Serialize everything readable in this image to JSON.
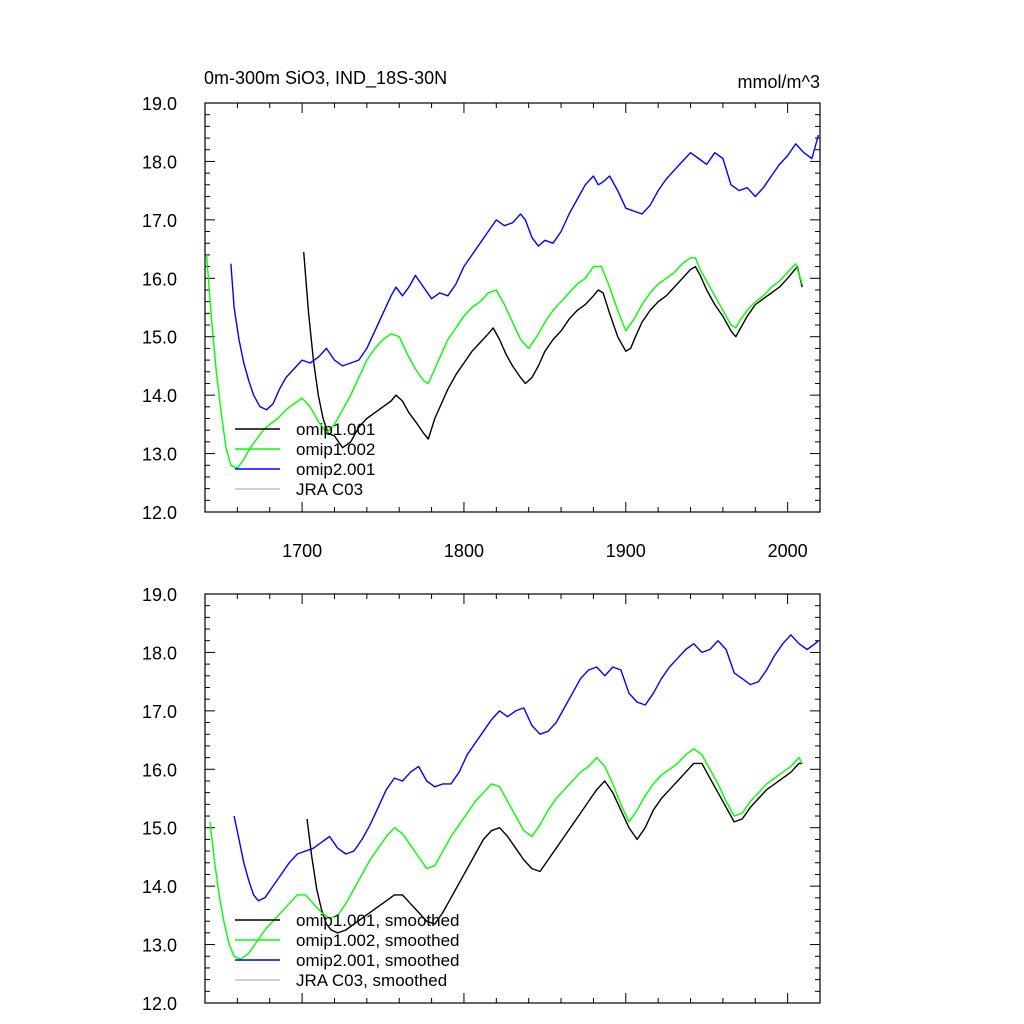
{
  "chart_data": [
    {
      "type": "line",
      "title": "0m-300m SiO3, IND_18S-30N",
      "units": "mmol/m^3",
      "xlim": [
        1640,
        2020
      ],
      "ylim": [
        12.0,
        19.0
      ],
      "xticks": [
        "1700",
        "1800",
        "1900",
        "2000"
      ],
      "yticks": [
        "12.0",
        "13.0",
        "14.0",
        "15.0",
        "16.0",
        "17.0",
        "18.0",
        "19.0"
      ],
      "legend": "lower-left",
      "grid": false,
      "series": [
        {
          "name": "omip1.001",
          "color": "#000000",
          "x": [
            1701,
            1704,
            1707,
            1710,
            1713,
            1716,
            1720,
            1725,
            1730,
            1735,
            1740,
            1745,
            1750,
            1755,
            1758,
            1762,
            1766,
            1770,
            1775,
            1778,
            1782,
            1786,
            1790,
            1795,
            1800,
            1805,
            1810,
            1815,
            1818,
            1822,
            1826,
            1830,
            1835,
            1838,
            1842,
            1846,
            1850,
            1855,
            1860,
            1865,
            1870,
            1875,
            1880,
            1883,
            1886,
            1890,
            1895,
            1900,
            1903,
            1906,
            1910,
            1915,
            1920,
            1925,
            1930,
            1935,
            1940,
            1943,
            1946,
            1950,
            1955,
            1960,
            1965,
            1968,
            1971,
            1975,
            1980,
            1985,
            1990,
            1995,
            2000,
            2003,
            2006,
            2009
          ],
          "values": [
            16.45,
            15.4,
            14.6,
            14.0,
            13.6,
            13.35,
            13.3,
            13.1,
            13.2,
            13.45,
            13.6,
            13.7,
            13.8,
            13.9,
            14.0,
            13.9,
            13.7,
            13.55,
            13.35,
            13.25,
            13.6,
            13.85,
            14.1,
            14.35,
            14.55,
            14.75,
            14.9,
            15.05,
            15.15,
            14.95,
            14.7,
            14.5,
            14.3,
            14.2,
            14.3,
            14.5,
            14.75,
            14.95,
            15.1,
            15.3,
            15.45,
            15.55,
            15.7,
            15.8,
            15.75,
            15.4,
            15.0,
            14.75,
            14.8,
            15.0,
            15.25,
            15.45,
            15.6,
            15.7,
            15.85,
            16.0,
            16.15,
            16.2,
            16.05,
            15.8,
            15.55,
            15.35,
            15.1,
            15.0,
            15.15,
            15.35,
            15.55,
            15.65,
            15.75,
            15.85,
            16.0,
            16.1,
            16.2,
            15.85
          ]
        },
        {
          "name": "omip1.002",
          "color": "#00ff00",
          "x": [
            1641,
            1644,
            1647,
            1650,
            1653,
            1656,
            1660,
            1664,
            1668,
            1672,
            1676,
            1680,
            1685,
            1690,
            1695,
            1700,
            1705,
            1710,
            1715,
            1720,
            1725,
            1730,
            1735,
            1740,
            1745,
            1750,
            1755,
            1760,
            1765,
            1770,
            1775,
            1778,
            1782,
            1786,
            1790,
            1795,
            1800,
            1805,
            1810,
            1815,
            1820,
            1825,
            1830,
            1835,
            1840,
            1845,
            1850,
            1855,
            1860,
            1865,
            1870,
            1875,
            1880,
            1885,
            1890,
            1895,
            1900,
            1905,
            1910,
            1915,
            1920,
            1925,
            1930,
            1935,
            1940,
            1943,
            1946,
            1950,
            1955,
            1960,
            1965,
            1968,
            1971,
            1975,
            1980,
            1985,
            1990,
            1995,
            2000,
            2005,
            2009
          ],
          "values": [
            16.4,
            15.3,
            14.4,
            13.7,
            13.1,
            12.8,
            12.75,
            12.9,
            13.1,
            13.25,
            13.4,
            13.5,
            13.6,
            13.75,
            13.85,
            13.95,
            13.8,
            13.55,
            13.35,
            13.5,
            13.75,
            14.0,
            14.3,
            14.6,
            14.8,
            14.95,
            15.05,
            15.0,
            14.7,
            14.45,
            14.25,
            14.2,
            14.45,
            14.7,
            14.95,
            15.15,
            15.35,
            15.5,
            15.6,
            15.75,
            15.8,
            15.55,
            15.25,
            14.95,
            14.8,
            15.0,
            15.25,
            15.45,
            15.6,
            15.75,
            15.9,
            16.0,
            16.2,
            16.2,
            15.85,
            15.45,
            15.1,
            15.3,
            15.55,
            15.75,
            15.9,
            16.0,
            16.1,
            16.25,
            16.35,
            16.35,
            16.15,
            15.95,
            15.7,
            15.45,
            15.2,
            15.15,
            15.3,
            15.45,
            15.6,
            15.7,
            15.85,
            15.95,
            16.1,
            16.25,
            15.9
          ]
        },
        {
          "name": "omip2.001",
          "color": "#0000ff",
          "x": [
            1656,
            1658,
            1661,
            1664,
            1667,
            1670,
            1674,
            1678,
            1682,
            1686,
            1690,
            1695,
            1700,
            1705,
            1710,
            1715,
            1720,
            1725,
            1730,
            1735,
            1740,
            1745,
            1750,
            1755,
            1758,
            1762,
            1766,
            1770,
            1775,
            1780,
            1785,
            1790,
            1795,
            1800,
            1805,
            1810,
            1815,
            1820,
            1825,
            1830,
            1835,
            1838,
            1842,
            1846,
            1850,
            1855,
            1860,
            1865,
            1870,
            1875,
            1880,
            1883,
            1886,
            1890,
            1895,
            1900,
            1905,
            1910,
            1915,
            1920,
            1925,
            1930,
            1935,
            1940,
            1945,
            1950,
            1955,
            1960,
            1965,
            1970,
            1975,
            1980,
            1985,
            1990,
            1995,
            2000,
            2005,
            2010,
            2015,
            2019
          ],
          "values": [
            16.25,
            15.5,
            14.95,
            14.55,
            14.25,
            14.0,
            13.8,
            13.75,
            13.85,
            14.1,
            14.3,
            14.45,
            14.6,
            14.55,
            14.65,
            14.8,
            14.6,
            14.5,
            14.55,
            14.6,
            14.8,
            15.1,
            15.4,
            15.7,
            15.85,
            15.7,
            15.85,
            16.05,
            15.85,
            15.65,
            15.75,
            15.7,
            15.9,
            16.2,
            16.4,
            16.6,
            16.8,
            17.0,
            16.9,
            16.95,
            17.1,
            17.0,
            16.7,
            16.55,
            16.65,
            16.6,
            16.8,
            17.1,
            17.35,
            17.6,
            17.75,
            17.6,
            17.65,
            17.75,
            17.5,
            17.2,
            17.15,
            17.1,
            17.25,
            17.5,
            17.7,
            17.85,
            18.0,
            18.15,
            18.05,
            17.95,
            18.15,
            18.05,
            17.6,
            17.5,
            17.55,
            17.4,
            17.55,
            17.75,
            17.95,
            18.1,
            18.3,
            18.15,
            18.05,
            18.45
          ]
        },
        {
          "name": "JRA C03",
          "color": "#c0c0c0",
          "x": [],
          "values": []
        }
      ]
    },
    {
      "type": "line",
      "xlim": [
        1640,
        2020
      ],
      "ylim": [
        12.0,
        19.0
      ],
      "yticks": [
        "12.0",
        "13.0",
        "14.0",
        "15.0",
        "16.0",
        "17.0",
        "18.0",
        "19.0"
      ],
      "legend": "lower-left",
      "grid": false,
      "series": [
        {
          "name": "omip1.001, smoothed",
          "color": "#000000",
          "x": [
            1703,
            1706,
            1709,
            1712,
            1715,
            1718,
            1722,
            1727,
            1732,
            1737,
            1742,
            1747,
            1752,
            1757,
            1762,
            1767,
            1772,
            1777,
            1782,
            1787,
            1792,
            1797,
            1802,
            1807,
            1812,
            1817,
            1822,
            1827,
            1832,
            1837,
            1842,
            1847,
            1852,
            1857,
            1862,
            1867,
            1872,
            1877,
            1882,
            1887,
            1892,
            1897,
            1902,
            1907,
            1912,
            1917,
            1922,
            1927,
            1932,
            1937,
            1942,
            1947,
            1952,
            1957,
            1962,
            1967,
            1972,
            1977,
            1982,
            1987,
            1992,
            1997,
            2002,
            2007,
            2009
          ],
          "values": [
            15.15,
            14.5,
            13.95,
            13.6,
            13.35,
            13.25,
            13.2,
            13.25,
            13.35,
            13.45,
            13.55,
            13.65,
            13.75,
            13.85,
            13.85,
            13.7,
            13.55,
            13.4,
            13.35,
            13.55,
            13.8,
            14.05,
            14.3,
            14.55,
            14.8,
            14.95,
            15.0,
            14.85,
            14.65,
            14.45,
            14.3,
            14.25,
            14.45,
            14.65,
            14.85,
            15.05,
            15.25,
            15.45,
            15.65,
            15.8,
            15.6,
            15.3,
            15.0,
            14.8,
            15.0,
            15.3,
            15.5,
            15.65,
            15.8,
            15.95,
            16.1,
            16.1,
            15.85,
            15.6,
            15.35,
            15.1,
            15.15,
            15.35,
            15.5,
            15.65,
            15.75,
            15.85,
            15.95,
            16.1,
            16.1
          ]
        },
        {
          "name": "omip1.002, smoothed",
          "color": "#00ff00",
          "x": [
            1643,
            1646,
            1649,
            1652,
            1655,
            1658,
            1662,
            1667,
            1672,
            1677,
            1682,
            1687,
            1692,
            1697,
            1702,
            1707,
            1712,
            1717,
            1722,
            1727,
            1732,
            1737,
            1742,
            1747,
            1752,
            1757,
            1762,
            1767,
            1772,
            1777,
            1782,
            1787,
            1792,
            1797,
            1802,
            1807,
            1812,
            1817,
            1822,
            1827,
            1832,
            1837,
            1842,
            1847,
            1852,
            1857,
            1862,
            1867,
            1872,
            1877,
            1882,
            1887,
            1892,
            1897,
            1902,
            1907,
            1912,
            1917,
            1922,
            1927,
            1932,
            1937,
            1942,
            1947,
            1952,
            1957,
            1962,
            1967,
            1972,
            1977,
            1982,
            1987,
            1992,
            1997,
            2002,
            2007,
            2009
          ],
          "values": [
            15.1,
            14.4,
            13.8,
            13.35,
            13.0,
            12.8,
            12.75,
            12.85,
            13.05,
            13.25,
            13.4,
            13.55,
            13.7,
            13.85,
            13.85,
            13.7,
            13.55,
            13.45,
            13.5,
            13.7,
            13.95,
            14.2,
            14.45,
            14.65,
            14.85,
            15.0,
            14.9,
            14.7,
            14.5,
            14.3,
            14.35,
            14.6,
            14.85,
            15.05,
            15.25,
            15.45,
            15.6,
            15.75,
            15.7,
            15.45,
            15.2,
            14.95,
            14.85,
            15.05,
            15.3,
            15.5,
            15.65,
            15.8,
            15.95,
            16.05,
            16.2,
            16.05,
            15.75,
            15.4,
            15.1,
            15.3,
            15.55,
            15.75,
            15.9,
            16.0,
            16.1,
            16.25,
            16.35,
            16.25,
            16.0,
            15.75,
            15.45,
            15.2,
            15.25,
            15.45,
            15.6,
            15.75,
            15.85,
            15.95,
            16.05,
            16.2,
            16.1
          ]
        },
        {
          "name": "omip2.001, smoothed",
          "color": "#0000ff",
          "x": [
            1658,
            1661,
            1664,
            1667,
            1670,
            1673,
            1677,
            1682,
            1687,
            1692,
            1697,
            1702,
            1707,
            1712,
            1717,
            1722,
            1727,
            1732,
            1737,
            1742,
            1747,
            1752,
            1757,
            1762,
            1767,
            1772,
            1777,
            1782,
            1787,
            1792,
            1797,
            1802,
            1807,
            1812,
            1817,
            1822,
            1827,
            1832,
            1837,
            1842,
            1847,
            1852,
            1857,
            1862,
            1867,
            1872,
            1877,
            1882,
            1887,
            1892,
            1897,
            1902,
            1907,
            1912,
            1917,
            1922,
            1927,
            1932,
            1937,
            1942,
            1947,
            1952,
            1957,
            1962,
            1967,
            1972,
            1977,
            1982,
            1987,
            1992,
            1997,
            2002,
            2007,
            2012,
            2017,
            2019
          ],
          "values": [
            15.2,
            14.8,
            14.4,
            14.1,
            13.85,
            13.75,
            13.8,
            14.0,
            14.2,
            14.4,
            14.55,
            14.6,
            14.65,
            14.75,
            14.85,
            14.65,
            14.55,
            14.6,
            14.8,
            15.05,
            15.35,
            15.65,
            15.85,
            15.8,
            15.95,
            16.05,
            15.8,
            15.7,
            15.75,
            15.75,
            15.95,
            16.25,
            16.45,
            16.65,
            16.85,
            17.0,
            16.9,
            17.0,
            17.05,
            16.75,
            16.6,
            16.65,
            16.8,
            17.05,
            17.3,
            17.55,
            17.7,
            17.75,
            17.6,
            17.75,
            17.7,
            17.3,
            17.15,
            17.1,
            17.3,
            17.55,
            17.75,
            17.9,
            18.05,
            18.15,
            18.0,
            18.05,
            18.2,
            18.05,
            17.65,
            17.55,
            17.45,
            17.5,
            17.7,
            17.95,
            18.15,
            18.3,
            18.15,
            18.05,
            18.15,
            18.2
          ]
        },
        {
          "name": "JRA C03, smoothed",
          "color": "#c0c0c0",
          "x": [],
          "values": []
        }
      ]
    }
  ]
}
